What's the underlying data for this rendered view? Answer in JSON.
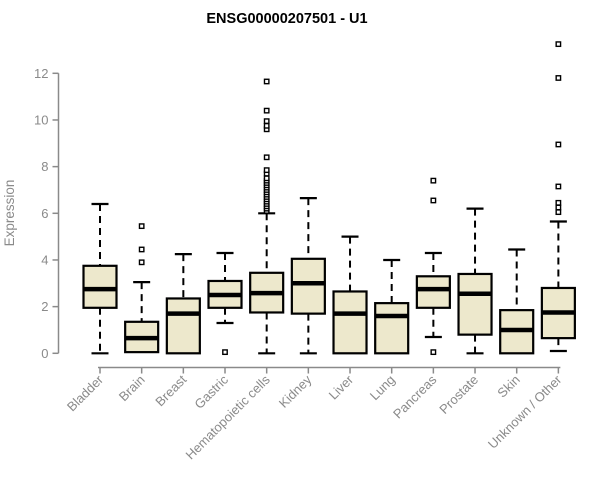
{
  "chart_data": {
    "type": "boxplot",
    "title": "ENSG00000207501 - U1",
    "ylabel": "Expression",
    "xlabel": "",
    "y_ticks": [
      0,
      2,
      4,
      6,
      8,
      10,
      12
    ],
    "ylim": [
      0,
      13.5
    ],
    "grid": false,
    "legend": "none",
    "box_fill": "#EDE8CC",
    "box_stroke": "#000000",
    "median_color": "#000000",
    "outlier_marker": "open-square",
    "axis_color": "#8A8A8A",
    "label_color": "#8A8A8A",
    "title_color": "#000000",
    "categories": [
      "Bladder",
      "Brain",
      "Breast",
      "Gastric",
      "Hematopoietic cells",
      "Kidney",
      "Liver",
      "Lung",
      "Pancreas",
      "Prostate",
      "Skin",
      "Unknown / Other"
    ],
    "series": [
      {
        "name": "Bladder",
        "whisker_low": 0.0,
        "q1": 1.95,
        "median": 2.75,
        "q3": 3.75,
        "whisker_high": 6.4,
        "outliers": []
      },
      {
        "name": "Brain",
        "whisker_low": 0.05,
        "q1": 0.05,
        "median": 0.65,
        "q3": 1.35,
        "whisker_high": 3.05,
        "outliers": [
          3.9,
          4.45,
          5.45
        ]
      },
      {
        "name": "Breast",
        "whisker_low": 0.0,
        "q1": 0.0,
        "median": 1.7,
        "q3": 2.35,
        "whisker_high": 4.25,
        "outliers": []
      },
      {
        "name": "Gastric",
        "whisker_low": 1.3,
        "q1": 1.95,
        "median": 2.5,
        "q3": 3.1,
        "whisker_high": 4.3,
        "outliers": [
          0.05
        ]
      },
      {
        "name": "Hematopoietic cells",
        "whisker_low": 0.0,
        "q1": 1.75,
        "median": 2.58,
        "q3": 3.45,
        "whisker_high": 6.0,
        "outliers": [
          6.1,
          6.2,
          6.3,
          6.4,
          6.5,
          6.6,
          6.7,
          6.8,
          6.9,
          7.0,
          7.1,
          7.2,
          7.3,
          7.4,
          7.5,
          7.7,
          7.85,
          8.4,
          9.6,
          9.75,
          9.95,
          10.4,
          11.65
        ]
      },
      {
        "name": "Kidney",
        "whisker_low": 0.0,
        "q1": 1.7,
        "median": 3.0,
        "q3": 4.05,
        "whisker_high": 6.65,
        "outliers": []
      },
      {
        "name": "Liver",
        "whisker_low": 0.0,
        "q1": 0.0,
        "median": 1.7,
        "q3": 2.65,
        "whisker_high": 5.0,
        "outliers": []
      },
      {
        "name": "Lung",
        "whisker_low": 0.0,
        "q1": 0.0,
        "median": 1.6,
        "q3": 2.15,
        "whisker_high": 4.0,
        "outliers": []
      },
      {
        "name": "Pancreas",
        "whisker_low": 0.7,
        "q1": 1.95,
        "median": 2.75,
        "q3": 3.3,
        "whisker_high": 4.3,
        "outliers": [
          6.55,
          7.4,
          0.05
        ]
      },
      {
        "name": "Prostate",
        "whisker_low": 0.0,
        "q1": 0.8,
        "median": 2.55,
        "q3": 3.4,
        "whisker_high": 6.2,
        "outliers": []
      },
      {
        "name": "Skin",
        "whisker_low": 0.0,
        "q1": 0.0,
        "median": 1.0,
        "q3": 1.85,
        "whisker_high": 4.45,
        "outliers": []
      },
      {
        "name": "Unknown / Other",
        "whisker_low": 0.1,
        "q1": 0.65,
        "median": 1.75,
        "q3": 2.8,
        "whisker_high": 5.65,
        "outliers": [
          6.05,
          6.25,
          6.45,
          7.15,
          8.95,
          11.8,
          13.25
        ]
      }
    ]
  }
}
